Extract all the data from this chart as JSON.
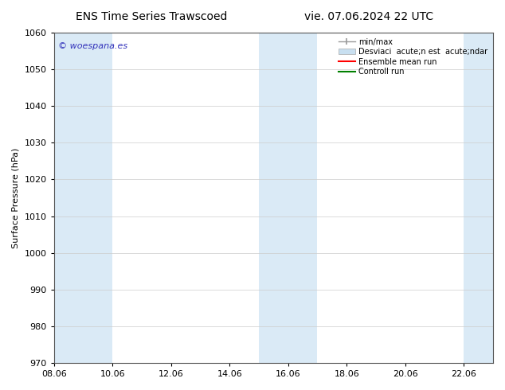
{
  "title_left": "ENS Time Series Trawscoed",
  "title_right": "vie. 07.06.2024 22 UTC",
  "ylabel": "Surface Pressure (hPa)",
  "xlim": [
    0,
    15
  ],
  "ylim": [
    970,
    1060
  ],
  "yticks": [
    970,
    980,
    990,
    1000,
    1010,
    1020,
    1030,
    1040,
    1050,
    1060
  ],
  "xtick_labels": [
    "08.06",
    "10.06",
    "12.06",
    "14.06",
    "16.06",
    "18.06",
    "20.06",
    "22.06"
  ],
  "xtick_positions": [
    0,
    2,
    4,
    6,
    8,
    10,
    12,
    14
  ],
  "shaded_bands": [
    {
      "x_start": 0.0,
      "x_end": 2.0,
      "color": "#daeaf6"
    },
    {
      "x_start": 7.0,
      "x_end": 9.0,
      "color": "#daeaf6"
    },
    {
      "x_start": 14.0,
      "x_end": 15.0,
      "color": "#daeaf6"
    }
  ],
  "watermark_text": "© woespana.es",
  "watermark_color": "#3333bb",
  "legend_label_minmax": "min/max",
  "legend_label_std": "Desviaci  acute;n est  acute;ndar",
  "legend_label_ens": "Ensemble mean run",
  "legend_label_ctrl": "Controll run",
  "legend_color_minmax": "#999999",
  "legend_color_std": "#c8dff0",
  "legend_color_ens": "red",
  "legend_color_ctrl": "green",
  "bg_color": "#ffffff",
  "title_fontsize": 10,
  "tick_fontsize": 8,
  "ylabel_fontsize": 8,
  "legend_fontsize": 7,
  "watermark_fontsize": 8
}
